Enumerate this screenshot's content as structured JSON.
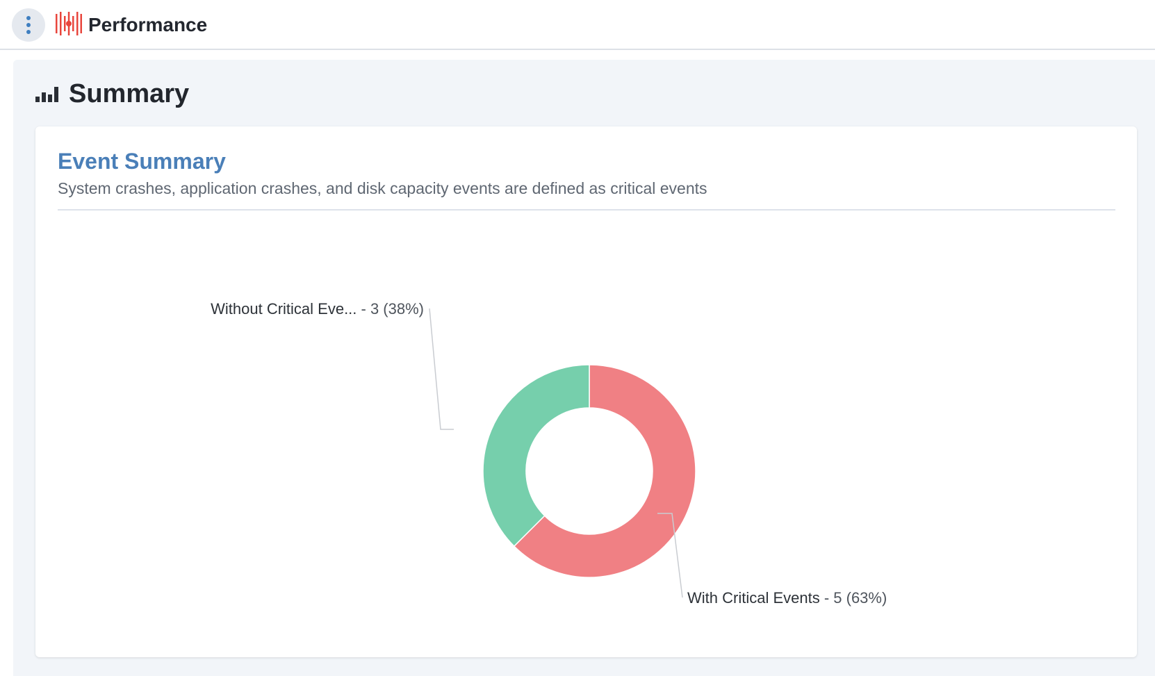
{
  "header": {
    "app_title": "Performance",
    "menu_icon": "kebab-menu-icon",
    "logo_icon": "performance-logo-icon",
    "logo_color": "#e8453c"
  },
  "summary": {
    "title": "Summary",
    "icon": "bar-chart-icon"
  },
  "event_card": {
    "title": "Event Summary",
    "subtitle": "System crashes, application crashes, and disk capacity events are defined as critical events"
  },
  "chart_data": {
    "type": "pie",
    "donut": true,
    "categories": [
      "With Critical Events",
      "Without Critical Events"
    ],
    "values": [
      5,
      3
    ],
    "percentages": [
      63,
      38
    ],
    "colors": [
      "#f08084",
      "#76cfac"
    ],
    "labels": [
      {
        "name": "With Critical Events",
        "text": " - 5 (63%)"
      },
      {
        "name": "Without Critical Eve...",
        "text": " - 3 (38%)"
      }
    ]
  }
}
